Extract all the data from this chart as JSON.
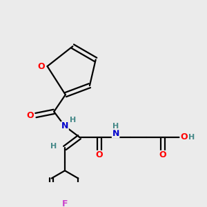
{
  "bg_color": "#ebebeb",
  "bond_color": "#000000",
  "bond_width": 1.6,
  "atom_colors": {
    "O": "#ff0000",
    "N": "#0000cc",
    "F": "#cc44cc",
    "H": "#448888",
    "C": "#000000"
  },
  "font_size": 9,
  "fig_size": [
    3.0,
    3.0
  ],
  "dpi": 100
}
